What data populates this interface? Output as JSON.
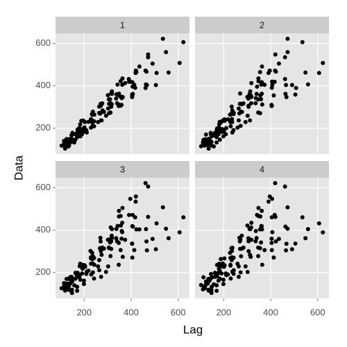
{
  "chart_data": {
    "type": "lag",
    "x_label": "Lag",
    "y_label": "Data",
    "lags": [
      1,
      2,
      3,
      4
    ],
    "values": [
      112,
      118,
      132,
      129,
      121,
      135,
      148,
      148,
      136,
      119,
      104,
      118,
      115,
      126,
      141,
      135,
      125,
      149,
      170,
      170,
      158,
      133,
      114,
      140,
      145,
      150,
      178,
      163,
      172,
      178,
      199,
      199,
      184,
      162,
      146,
      166,
      171,
      180,
      193,
      181,
      183,
      218,
      230,
      242,
      209,
      191,
      172,
      194,
      196,
      196,
      236,
      235,
      229,
      243,
      264,
      272,
      237,
      211,
      180,
      201,
      204,
      188,
      235,
      227,
      234,
      264,
      302,
      293,
      259,
      229,
      203,
      229,
      242,
      233,
      267,
      269,
      270,
      315,
      364,
      347,
      312,
      274,
      237,
      278,
      284,
      277,
      317,
      313,
      318,
      374,
      413,
      405,
      355,
      306,
      271,
      306,
      315,
      301,
      356,
      348,
      355,
      422,
      465,
      467,
      404,
      347,
      305,
      336,
      340,
      318,
      362,
      348,
      363,
      435,
      491,
      505,
      404,
      359,
      310,
      337,
      360,
      342,
      406,
      396,
      420,
      472,
      548,
      559,
      463,
      407,
      362,
      405,
      417,
      391,
      419,
      461,
      472,
      535,
      622,
      606,
      508,
      461,
      390,
      432
    ],
    "color": "#000000",
    "xlim": [
      78.1,
      647.9
    ],
    "xticks": [
      200,
      400,
      600
    ],
    "ylim": [
      78.1,
      647.9
    ],
    "yticks": [
      200,
      400,
      600
    ],
    "grid": true
  }
}
